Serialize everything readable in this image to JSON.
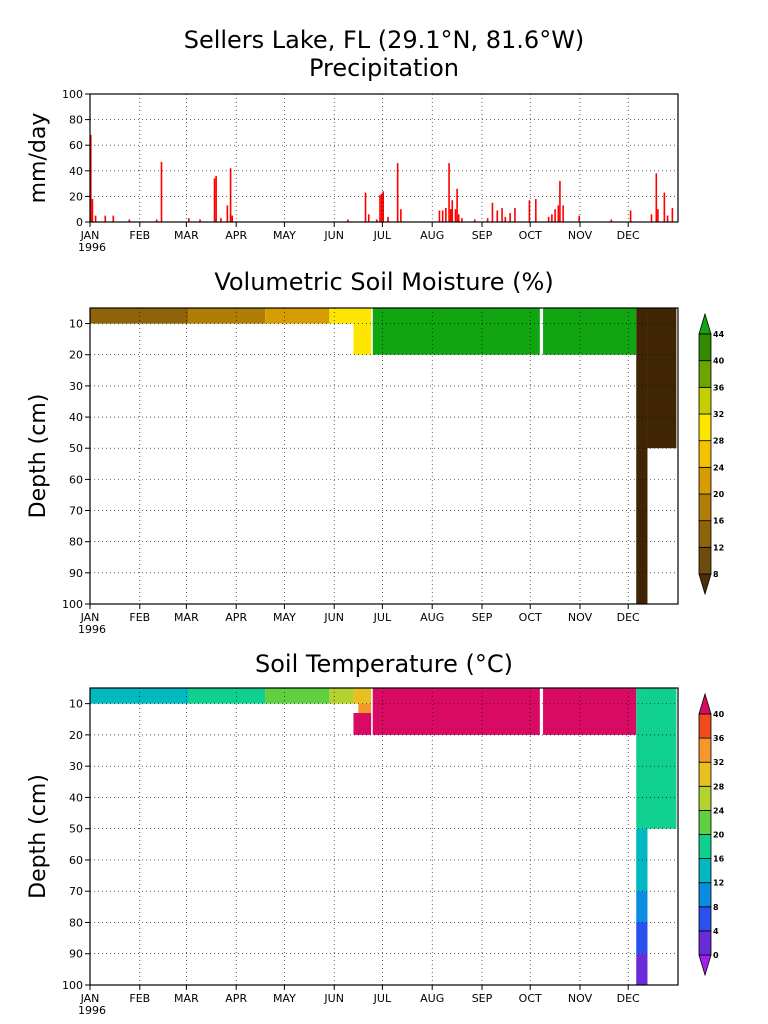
{
  "page": {
    "title_line1": "Sellers Lake, FL (29.1°N, 81.6°W)"
  },
  "chart_data": [
    {
      "type": "bar",
      "title": "Precipitation",
      "ylabel": "mm/day",
      "ylim": [
        0,
        100
      ],
      "yticks": [
        "0",
        "20",
        "40",
        "60",
        "80",
        "100"
      ],
      "xticks": [
        "JAN",
        "FEB",
        "MAR",
        "APR",
        "MAY",
        "JUN",
        "JUL",
        "AUG",
        "SEP",
        "OCT",
        "NOV",
        "DEC"
      ],
      "year_label": "1996",
      "bar_color": "#ff0000",
      "series": [
        {
          "values": [
            {
              "day": 1,
              "value": 68
            },
            {
              "day": 2,
              "value": 18
            },
            {
              "day": 4,
              "value": 5
            },
            {
              "day": 10,
              "value": 5
            },
            {
              "day": 15,
              "value": 5
            },
            {
              "day": 25,
              "value": 2
            },
            {
              "day": 42,
              "value": 2
            },
            {
              "day": 45,
              "value": 47
            },
            {
              "day": 62,
              "value": 3
            },
            {
              "day": 69,
              "value": 2
            },
            {
              "day": 78,
              "value": 34
            },
            {
              "day": 79,
              "value": 36
            },
            {
              "day": 82,
              "value": 3
            },
            {
              "day": 86,
              "value": 13
            },
            {
              "day": 88,
              "value": 42
            },
            {
              "day": 89,
              "value": 5
            },
            {
              "day": 161,
              "value": 2
            },
            {
              "day": 172,
              "value": 23
            },
            {
              "day": 174,
              "value": 6
            },
            {
              "day": 179,
              "value": 2
            },
            {
              "day": 181,
              "value": 21
            },
            {
              "day": 182,
              "value": 22
            },
            {
              "day": 183,
              "value": 24
            },
            {
              "day": 186,
              "value": 4
            },
            {
              "day": 192,
              "value": 46
            },
            {
              "day": 194,
              "value": 10
            },
            {
              "day": 218,
              "value": 9
            },
            {
              "day": 220,
              "value": 9
            },
            {
              "day": 222,
              "value": 11
            },
            {
              "day": 224,
              "value": 46
            },
            {
              "day": 225,
              "value": 10
            },
            {
              "day": 226,
              "value": 17
            },
            {
              "day": 228,
              "value": 10
            },
            {
              "day": 229,
              "value": 26
            },
            {
              "day": 230,
              "value": 6
            },
            {
              "day": 232,
              "value": 3
            },
            {
              "day": 240,
              "value": 2
            },
            {
              "day": 248,
              "value": 3
            },
            {
              "day": 251,
              "value": 15
            },
            {
              "day": 254,
              "value": 9
            },
            {
              "day": 257,
              "value": 11
            },
            {
              "day": 259,
              "value": 4
            },
            {
              "day": 262,
              "value": 7
            },
            {
              "day": 265,
              "value": 11
            },
            {
              "day": 274,
              "value": 17
            },
            {
              "day": 278,
              "value": 18
            },
            {
              "day": 286,
              "value": 4
            },
            {
              "day": 288,
              "value": 6
            },
            {
              "day": 290,
              "value": 10
            },
            {
              "day": 292,
              "value": 13
            },
            {
              "day": 293,
              "value": 32
            },
            {
              "day": 295,
              "value": 13
            },
            {
              "day": 305,
              "value": 5
            },
            {
              "day": 325,
              "value": 2
            },
            {
              "day": 337,
              "value": 9
            },
            {
              "day": 350,
              "value": 6
            },
            {
              "day": 353,
              "value": 38
            },
            {
              "day": 354,
              "value": 10
            },
            {
              "day": 358,
              "value": 23
            },
            {
              "day": 360,
              "value": 5
            },
            {
              "day": 363,
              "value": 11
            }
          ]
        }
      ]
    },
    {
      "type": "heatmap",
      "title": "Volumetric Soil Moisture (%)",
      "ylabel": "Depth (cm)",
      "ylim": [
        100,
        5
      ],
      "yticks": [
        "10",
        "20",
        "30",
        "40",
        "50",
        "60",
        "70",
        "80",
        "90",
        "100"
      ],
      "xticks": [
        "JAN",
        "FEB",
        "MAR",
        "APR",
        "MAY",
        "JUN",
        "JUL",
        "AUG",
        "SEP",
        "OCT",
        "NOV",
        "DEC"
      ],
      "year_label": "1996",
      "colorbar": {
        "labels": [
          "8",
          "12",
          "16",
          "20",
          "24",
          "28",
          "32",
          "36",
          "40",
          "44"
        ],
        "colors": [
          "#4a2f0c",
          "#6e4b10",
          "#8f6308",
          "#b07d07",
          "#d79c00",
          "#f4c200",
          "#fee600",
          "#c3cf00",
          "#6aa500",
          "#338900",
          "#11a611"
        ]
      },
      "regions": [
        {
          "x0": 1,
          "x1": 62,
          "d0": 5,
          "d1": 10,
          "color": "#8f6308"
        },
        {
          "x0": 62,
          "x1": 110,
          "d0": 5,
          "d1": 10,
          "color": "#b07d07"
        },
        {
          "x0": 110,
          "x1": 150,
          "d0": 5,
          "d1": 10,
          "color": "#d79c00"
        },
        {
          "x0": 150,
          "x1": 176,
          "d0": 5,
          "d1": 10,
          "color": "#fee600"
        },
        {
          "x0": 165,
          "x1": 176,
          "d0": 10,
          "d1": 20,
          "color": "#fee600"
        },
        {
          "x0": 177,
          "x1": 281,
          "d0": 5,
          "d1": 20,
          "color": "#11a611"
        },
        {
          "x0": 283,
          "x1": 341,
          "d0": 5,
          "d1": 20,
          "color": "#11a611"
        },
        {
          "x0": 341,
          "x1": 348,
          "d0": 5,
          "d1": 100,
          "color": "#3f2504"
        },
        {
          "x0": 348,
          "x1": 366,
          "d0": 5,
          "d1": 50,
          "color": "#3f2504"
        }
      ]
    },
    {
      "type": "heatmap",
      "title": "Soil Temperature (°C)",
      "ylabel": "Depth (cm)",
      "ylim": [
        100,
        5
      ],
      "yticks": [
        "10",
        "20",
        "30",
        "40",
        "50",
        "60",
        "70",
        "80",
        "90",
        "100"
      ],
      "xticks": [
        "JAN",
        "FEB",
        "MAR",
        "APR",
        "MAY",
        "JUN",
        "JUL",
        "AUG",
        "SEP",
        "OCT",
        "NOV",
        "DEC"
      ],
      "year_label": "1996",
      "colorbar": {
        "labels": [
          "0",
          "4",
          "8",
          "12",
          "16",
          "20",
          "24",
          "28",
          "32",
          "36",
          "40"
        ],
        "colors": [
          "#a020f0",
          "#6a2cd6",
          "#2b50f0",
          "#0a8ce0",
          "#00b8c0",
          "#10d090",
          "#60d040",
          "#b4d22e",
          "#e8c020",
          "#f5982c",
          "#f04a1e",
          "#d80a64"
        ]
      },
      "regions": [
        {
          "x0": 1,
          "x1": 62,
          "d0": 5,
          "d1": 10,
          "color": "#00b8c0"
        },
        {
          "x0": 62,
          "x1": 110,
          "d0": 5,
          "d1": 10,
          "color": "#10d090"
        },
        {
          "x0": 110,
          "x1": 150,
          "d0": 5,
          "d1": 10,
          "color": "#60d040"
        },
        {
          "x0": 150,
          "x1": 165,
          "d0": 5,
          "d1": 10,
          "color": "#b4d22e"
        },
        {
          "x0": 165,
          "x1": 176,
          "d0": 5,
          "d1": 10,
          "color": "#e8c020"
        },
        {
          "x0": 168,
          "x1": 176,
          "d0": 10,
          "d1": 13,
          "color": "#f5982c"
        },
        {
          "x0": 165,
          "x1": 176,
          "d0": 13,
          "d1": 20,
          "color": "#d80a64"
        },
        {
          "x0": 177,
          "x1": 281,
          "d0": 5,
          "d1": 20,
          "color": "#d80a64"
        },
        {
          "x0": 283,
          "x1": 341,
          "d0": 5,
          "d1": 20,
          "color": "#d80a64"
        },
        {
          "x0": 341,
          "x1": 348,
          "d0": 5,
          "d1": 50,
          "color": "#10d090"
        },
        {
          "x0": 348,
          "x1": 366,
          "d0": 5,
          "d1": 50,
          "color": "#10d090"
        },
        {
          "x0": 341,
          "x1": 348,
          "d0": 50,
          "d1": 70,
          "color": "#00b8c0"
        },
        {
          "x0": 341,
          "x1": 348,
          "d0": 70,
          "d1": 80,
          "color": "#0a8ce0"
        },
        {
          "x0": 341,
          "x1": 348,
          "d0": 80,
          "d1": 90,
          "color": "#2b50f0"
        },
        {
          "x0": 341,
          "x1": 348,
          "d0": 90,
          "d1": 100,
          "color": "#6a2cd6"
        }
      ]
    }
  ]
}
